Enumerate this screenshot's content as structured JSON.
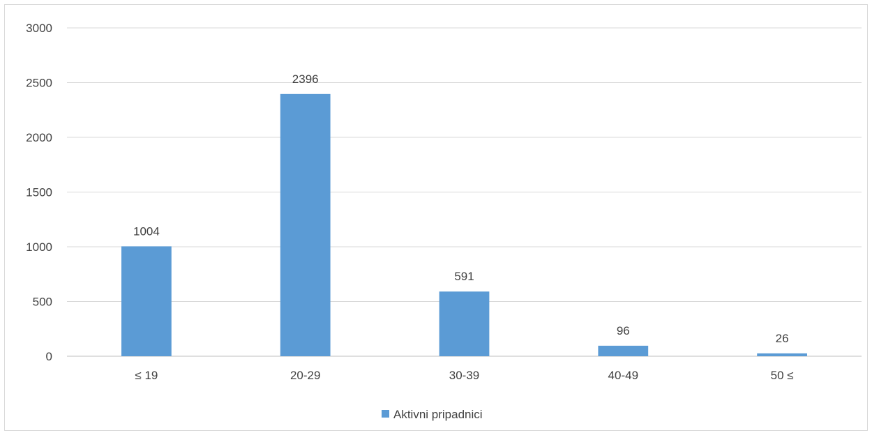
{
  "chart_data": {
    "type": "bar",
    "categories": [
      "≤ 19",
      "20-29",
      "30-39",
      "40-49",
      "50 ≤"
    ],
    "series": [
      {
        "name": "Aktivni pripadnici",
        "values": [
          1004,
          2396,
          591,
          96,
          26
        ],
        "color": "#5b9bd5"
      }
    ],
    "data_labels": [
      "1004",
      "2396",
      "591",
      "96",
      "26"
    ],
    "y_ticks": [
      "0",
      "500",
      "1000",
      "1500",
      "2000",
      "2500",
      "3000"
    ],
    "ylim": [
      0,
      3000
    ],
    "grid": true,
    "legend_position": "bottom",
    "title": "",
    "xlabel": "",
    "ylabel": ""
  }
}
